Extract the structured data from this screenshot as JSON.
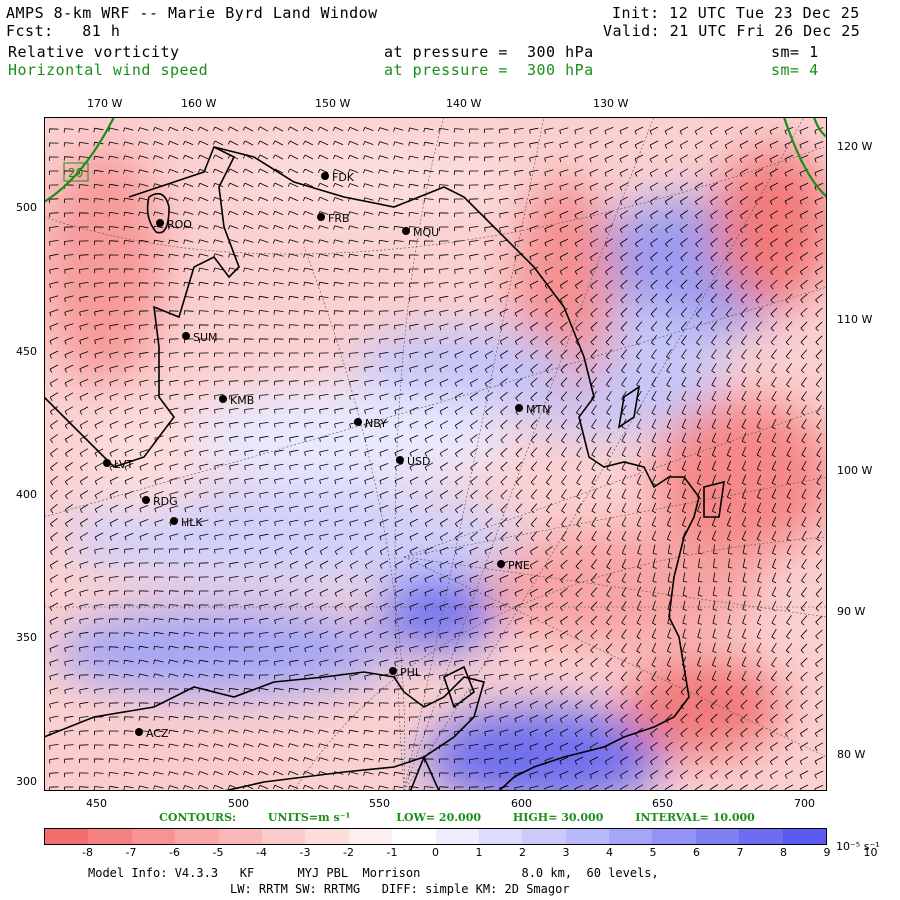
{
  "header": {
    "title": "AMPS 8-km WRF -- Marie Byrd Land Window",
    "init": "Init: 12 UTC Tue 23 Dec 25",
    "fcst": "Fcst:   81 h",
    "valid": "Valid: 21 UTC Fri 26 Dec 25",
    "field1": {
      "name": "Relative vorticity",
      "level": "at pressure =  300 hPa",
      "sm": "sm= 1"
    },
    "field2": {
      "name": "Horizontal wind speed",
      "level": "at pressure =  300 hPa",
      "sm": "sm= 4"
    }
  },
  "map": {
    "top_lon_labels": [
      "170 W",
      "160 W",
      "150 W",
      "140 W",
      "130 W"
    ],
    "right_lon_labels": [
      "120 W",
      "110 W",
      "100 W",
      "90 W",
      "80 W"
    ],
    "left_y_labels": [
      "500",
      "450",
      "400",
      "350",
      "300"
    ],
    "bottom_x_labels": [
      "450",
      "500",
      "550",
      "600",
      "650",
      "700"
    ],
    "contour_tag": "20",
    "stations": [
      {
        "id": "FDK"
      },
      {
        "id": "FRB"
      },
      {
        "id": "MQU"
      },
      {
        "id": "ROO"
      },
      {
        "id": "SUM"
      },
      {
        "id": "KMB"
      },
      {
        "id": "NBY"
      },
      {
        "id": "MTN"
      },
      {
        "id": "USD"
      },
      {
        "id": "LVT"
      },
      {
        "id": "RDG"
      },
      {
        "id": "HLK"
      },
      {
        "id": "PNE"
      },
      {
        "id": "PHL"
      },
      {
        "id": "ACZ"
      }
    ],
    "colors": {
      "coast": "#000000",
      "contour": "#1a8f1a",
      "grid": "#555555"
    }
  },
  "contours": {
    "label": "CONTOURS:",
    "units": "UNITS=m s⁻¹",
    "low": "LOW=  20.000",
    "high": "HIGH=  30.000",
    "interval": "INTERVAL=    10.000"
  },
  "colorbar": {
    "labels": [
      "-8",
      "-7",
      "-6",
      "-5",
      "-4",
      "-3",
      "-2",
      "-1",
      "0",
      "1",
      "2",
      "3",
      "4",
      "5",
      "6",
      "7",
      "8",
      "9",
      "10"
    ],
    "unit": "10⁻⁵ s⁻¹",
    "colors": [
      "#f46d6d",
      "#f58080",
      "#f79393",
      "#f8a6a6",
      "#fab8b8",
      "#fbcaca",
      "#fddcdc",
      "#feeeee",
      "#ffffff",
      "#eeeefe",
      "#dcdcfd",
      "#cacafb",
      "#b8b8fa",
      "#a6a6f8",
      "#9393f7",
      "#8080f5",
      "#6d6df4",
      "#5a5af2"
    ]
  },
  "footer": {
    "line1": "Model Info: V4.3.3   KF      MYJ PBL  Morrison              8.0 km,  60 levels,",
    "line2": "LW: RRTM SW: RRTMG   DIFF: simple KM: 2D Smagor"
  }
}
